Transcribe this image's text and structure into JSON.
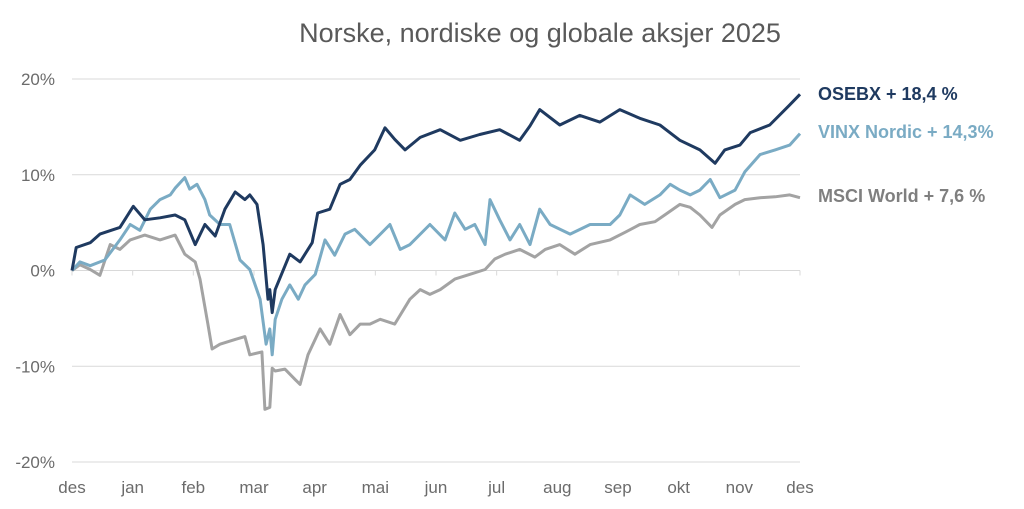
{
  "chart_data": {
    "type": "line",
    "title": "Norske, nordiske og globale aksjer 2025",
    "xlabel": "",
    "ylabel": "",
    "x_unit": "months since start",
    "xlim": [
      0,
      12
    ],
    "ylim": [
      -20,
      20
    ],
    "grid": true,
    "legend_placement": "right (end-of-line labels)",
    "x_ticks": [
      "des",
      "jan",
      "feb",
      "mar",
      "apr",
      "mai",
      "jun",
      "jul",
      "aug",
      "sep",
      "okt",
      "nov",
      "des"
    ],
    "y_ticks": [
      {
        "v": 20,
        "label": "20%"
      },
      {
        "v": 10,
        "label": "10%"
      },
      {
        "v": 0,
        "label": "0%"
      },
      {
        "v": -10,
        "label": "-10%"
      },
      {
        "v": -20,
        "label": "-20%"
      }
    ],
    "series": [
      {
        "name": "OSEBX",
        "label": "OSEBX + 18,4 %",
        "color": "#1f3a60",
        "label_value": 18.4,
        "points": [
          [
            0,
            0
          ],
          [
            0.07,
            2.4
          ],
          [
            0.3,
            2.9
          ],
          [
            0.46,
            3.8
          ],
          [
            0.79,
            4.5
          ],
          [
            1.01,
            6.7
          ],
          [
            1.2,
            5.3
          ],
          [
            1.45,
            5.5
          ],
          [
            1.7,
            5.8
          ],
          [
            1.86,
            5.3
          ],
          [
            2.03,
            2.7
          ],
          [
            2.19,
            4.8
          ],
          [
            2.36,
            3.6
          ],
          [
            2.52,
            6.4
          ],
          [
            2.69,
            8.2
          ],
          [
            2.85,
            7.4
          ],
          [
            2.93,
            7.9
          ],
          [
            3.05,
            6.9
          ],
          [
            3.15,
            2.7
          ],
          [
            3.23,
            -3.0
          ],
          [
            3.26,
            -2.0
          ],
          [
            3.3,
            -4.4
          ],
          [
            3.35,
            -2.0
          ],
          [
            3.59,
            1.7
          ],
          [
            3.76,
            0.9
          ],
          [
            3.96,
            2.9
          ],
          [
            4.05,
            6.0
          ],
          [
            4.25,
            6.4
          ],
          [
            4.42,
            9.0
          ],
          [
            4.58,
            9.5
          ],
          [
            4.75,
            11.0
          ],
          [
            4.99,
            12.6
          ],
          [
            5.16,
            14.9
          ],
          [
            5.32,
            13.7
          ],
          [
            5.49,
            12.6
          ],
          [
            5.74,
            13.9
          ],
          [
            6.07,
            14.7
          ],
          [
            6.4,
            13.6
          ],
          [
            6.72,
            14.2
          ],
          [
            7.05,
            14.7
          ],
          [
            7.38,
            13.6
          ],
          [
            7.55,
            15.1
          ],
          [
            7.71,
            16.8
          ],
          [
            8.04,
            15.2
          ],
          [
            8.37,
            16.2
          ],
          [
            8.7,
            15.5
          ],
          [
            9.03,
            16.8
          ],
          [
            9.36,
            15.9
          ],
          [
            9.69,
            15.2
          ],
          [
            10.02,
            13.6
          ],
          [
            10.35,
            12.6
          ],
          [
            10.6,
            11.2
          ],
          [
            10.76,
            12.6
          ],
          [
            11.01,
            13.1
          ],
          [
            11.18,
            14.4
          ],
          [
            11.5,
            15.2
          ],
          [
            11.83,
            17.3
          ],
          [
            12,
            18.4
          ]
        ]
      },
      {
        "name": "VINX Nordic",
        "label": "VINX Nordic + 14,3%",
        "color": "#7aabc4",
        "label_value": 14.3,
        "points": [
          [
            0,
            0
          ],
          [
            0.13,
            0.9
          ],
          [
            0.3,
            0.5
          ],
          [
            0.54,
            1.1
          ],
          [
            0.79,
            3.2
          ],
          [
            0.96,
            4.8
          ],
          [
            1.12,
            4.2
          ],
          [
            1.29,
            6.4
          ],
          [
            1.45,
            7.4
          ],
          [
            1.62,
            7.9
          ],
          [
            1.7,
            8.6
          ],
          [
            1.86,
            9.7
          ],
          [
            1.94,
            8.5
          ],
          [
            2.06,
            9.0
          ],
          [
            2.19,
            7.4
          ],
          [
            2.27,
            5.8
          ],
          [
            2.44,
            4.8
          ],
          [
            2.6,
            4.8
          ],
          [
            2.77,
            1.1
          ],
          [
            2.93,
            0.1
          ],
          [
            3.1,
            -3.0
          ],
          [
            3.2,
            -7.7
          ],
          [
            3.26,
            -6.1
          ],
          [
            3.3,
            -8.8
          ],
          [
            3.35,
            -5.1
          ],
          [
            3.46,
            -3.0
          ],
          [
            3.59,
            -1.5
          ],
          [
            3.73,
            -3.0
          ],
          [
            3.84,
            -1.5
          ],
          [
            4.01,
            -0.4
          ],
          [
            4.17,
            3.2
          ],
          [
            4.33,
            1.6
          ],
          [
            4.5,
            3.8
          ],
          [
            4.66,
            4.3
          ],
          [
            4.91,
            2.7
          ],
          [
            5.24,
            4.8
          ],
          [
            5.41,
            2.2
          ],
          [
            5.57,
            2.7
          ],
          [
            5.9,
            4.8
          ],
          [
            6.15,
            3.2
          ],
          [
            6.31,
            6.0
          ],
          [
            6.48,
            4.3
          ],
          [
            6.64,
            4.8
          ],
          [
            6.81,
            2.7
          ],
          [
            6.89,
            7.4
          ],
          [
            7.05,
            5.3
          ],
          [
            7.22,
            3.2
          ],
          [
            7.38,
            4.8
          ],
          [
            7.55,
            2.7
          ],
          [
            7.71,
            6.4
          ],
          [
            7.88,
            4.8
          ],
          [
            8.21,
            3.8
          ],
          [
            8.54,
            4.8
          ],
          [
            8.87,
            4.8
          ],
          [
            9.03,
            5.8
          ],
          [
            9.2,
            7.9
          ],
          [
            9.44,
            6.9
          ],
          [
            9.69,
            7.9
          ],
          [
            9.86,
            9.0
          ],
          [
            10.02,
            8.4
          ],
          [
            10.19,
            7.9
          ],
          [
            10.35,
            8.4
          ],
          [
            10.52,
            9.5
          ],
          [
            10.68,
            7.6
          ],
          [
            10.93,
            8.4
          ],
          [
            11.09,
            10.3
          ],
          [
            11.34,
            12.1
          ],
          [
            11.59,
            12.6
          ],
          [
            11.83,
            13.1
          ],
          [
            12,
            14.3
          ]
        ]
      },
      {
        "name": "MSCI World",
        "label": "MSCI World + 7,6 %",
        "color": "#a3a3a3",
        "label_color": "#7f7f7f",
        "label_value": 7.6,
        "points": [
          [
            0,
            0
          ],
          [
            0.13,
            0.6
          ],
          [
            0.3,
            0.1
          ],
          [
            0.46,
            -0.5
          ],
          [
            0.63,
            2.7
          ],
          [
            0.79,
            2.2
          ],
          [
            0.96,
            3.2
          ],
          [
            1.2,
            3.7
          ],
          [
            1.45,
            3.2
          ],
          [
            1.7,
            3.7
          ],
          [
            1.86,
            1.7
          ],
          [
            2.03,
            0.9
          ],
          [
            2.11,
            -0.9
          ],
          [
            2.24,
            -5.6
          ],
          [
            2.31,
            -8.2
          ],
          [
            2.44,
            -7.7
          ],
          [
            2.69,
            -7.2
          ],
          [
            2.85,
            -6.9
          ],
          [
            2.93,
            -8.8
          ],
          [
            3.13,
            -8.5
          ],
          [
            3.18,
            -14.5
          ],
          [
            3.26,
            -14.3
          ],
          [
            3.3,
            -10.2
          ],
          [
            3.35,
            -10.5
          ],
          [
            3.51,
            -10.3
          ],
          [
            3.68,
            -11.4
          ],
          [
            3.76,
            -11.9
          ],
          [
            3.89,
            -8.8
          ],
          [
            4.09,
            -6.1
          ],
          [
            4.25,
            -7.7
          ],
          [
            4.42,
            -4.6
          ],
          [
            4.58,
            -6.7
          ],
          [
            4.75,
            -5.6
          ],
          [
            4.91,
            -5.6
          ],
          [
            5.08,
            -5.1
          ],
          [
            5.32,
            -5.6
          ],
          [
            5.57,
            -3.0
          ],
          [
            5.74,
            -2.0
          ],
          [
            5.9,
            -2.5
          ],
          [
            6.07,
            -2.0
          ],
          [
            6.31,
            -0.9
          ],
          [
            6.56,
            -0.4
          ],
          [
            6.81,
            0.1
          ],
          [
            6.97,
            1.2
          ],
          [
            7.14,
            1.7
          ],
          [
            7.38,
            2.2
          ],
          [
            7.63,
            1.4
          ],
          [
            7.8,
            2.2
          ],
          [
            8.04,
            2.7
          ],
          [
            8.29,
            1.7
          ],
          [
            8.54,
            2.7
          ],
          [
            8.87,
            3.2
          ],
          [
            9.12,
            4.0
          ],
          [
            9.36,
            4.8
          ],
          [
            9.61,
            5.1
          ],
          [
            9.77,
            5.8
          ],
          [
            10.02,
            6.9
          ],
          [
            10.19,
            6.6
          ],
          [
            10.35,
            5.8
          ],
          [
            10.55,
            4.5
          ],
          [
            10.68,
            5.8
          ],
          [
            10.93,
            6.9
          ],
          [
            11.09,
            7.4
          ],
          [
            11.34,
            7.6
          ],
          [
            11.59,
            7.7
          ],
          [
            11.83,
            7.9
          ],
          [
            12,
            7.6
          ]
        ]
      }
    ]
  }
}
